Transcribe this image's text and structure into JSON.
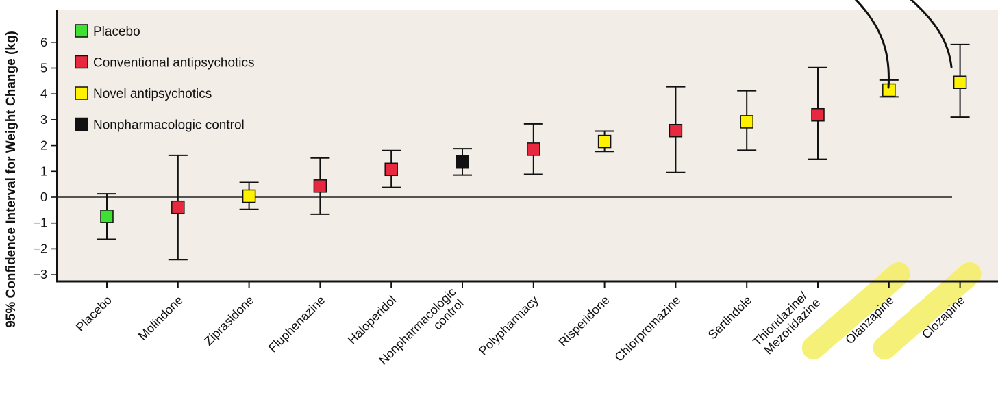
{
  "chart_data": {
    "type": "scatter",
    "ylabel": "95% Confidence Interval for Weight Change (kg)",
    "xlabel": "",
    "ylim": [
      -3.3,
      7.3
    ],
    "yticks": [
      "−3",
      "−2",
      "−1",
      "0",
      "1",
      "2",
      "3",
      "4",
      "5",
      "6"
    ],
    "grid": false,
    "legend_position": "top-left",
    "legend": [
      {
        "label": "Placebo",
        "color": "#3ee032"
      },
      {
        "label": "Conventional antipsychotics",
        "color": "#e8283f"
      },
      {
        "label": "Novel antipsychotics",
        "color": "#fff200"
      },
      {
        "label": "Nonpharmacologic control",
        "color": "#111111"
      }
    ],
    "categories": [
      {
        "label": "Placebo",
        "group": 0,
        "mean": -0.74,
        "low": -1.63,
        "high": 0.13
      },
      {
        "label": "Molindone",
        "group": 1,
        "mean": -0.39,
        "low": -2.42,
        "high": 1.62
      },
      {
        "label": "Ziprasidone",
        "group": 2,
        "mean": 0.04,
        "low": -0.47,
        "high": 0.57
      },
      {
        "label": "Fluphenazine",
        "group": 1,
        "mean": 0.43,
        "low": -0.66,
        "high": 1.52
      },
      {
        "label": "Haloperidol",
        "group": 1,
        "mean": 1.08,
        "low": 0.38,
        "high": 1.81
      },
      {
        "label": "Nonpharmacologic control",
        "label_lines": [
          "Nonpharmacologic",
          "control"
        ],
        "group": 3,
        "mean": 1.36,
        "low": 0.86,
        "high": 1.88
      },
      {
        "label": "Polypharmacy",
        "group": 1,
        "mean": 1.86,
        "low": 0.89,
        "high": 2.84
      },
      {
        "label": "Risperidone",
        "group": 2,
        "mean": 2.16,
        "low": 1.77,
        "high": 2.56
      },
      {
        "label": "Chlorpromazine",
        "group": 1,
        "mean": 2.58,
        "low": 0.96,
        "high": 4.28
      },
      {
        "label": "Sertindole",
        "group": 2,
        "mean": 2.92,
        "low": 1.82,
        "high": 4.12
      },
      {
        "label": "Thioridazine/ Mezoridazine",
        "label_lines": [
          "Thioridazine/",
          "Mezoridazine"
        ],
        "group": 1,
        "mean": 3.19,
        "low": 1.47,
        "high": 5.02
      },
      {
        "label": "Olanzapine",
        "group": 2,
        "mean": 4.15,
        "low": 3.89,
        "high": 4.54,
        "highlighted": true
      },
      {
        "label": "Clozapine",
        "group": 2,
        "mean": 4.45,
        "low": 3.1,
        "high": 5.92,
        "highlighted": true
      }
    ]
  },
  "colors": {
    "plot_background": "#f2ede7",
    "highlight": "#f5ef6a"
  }
}
